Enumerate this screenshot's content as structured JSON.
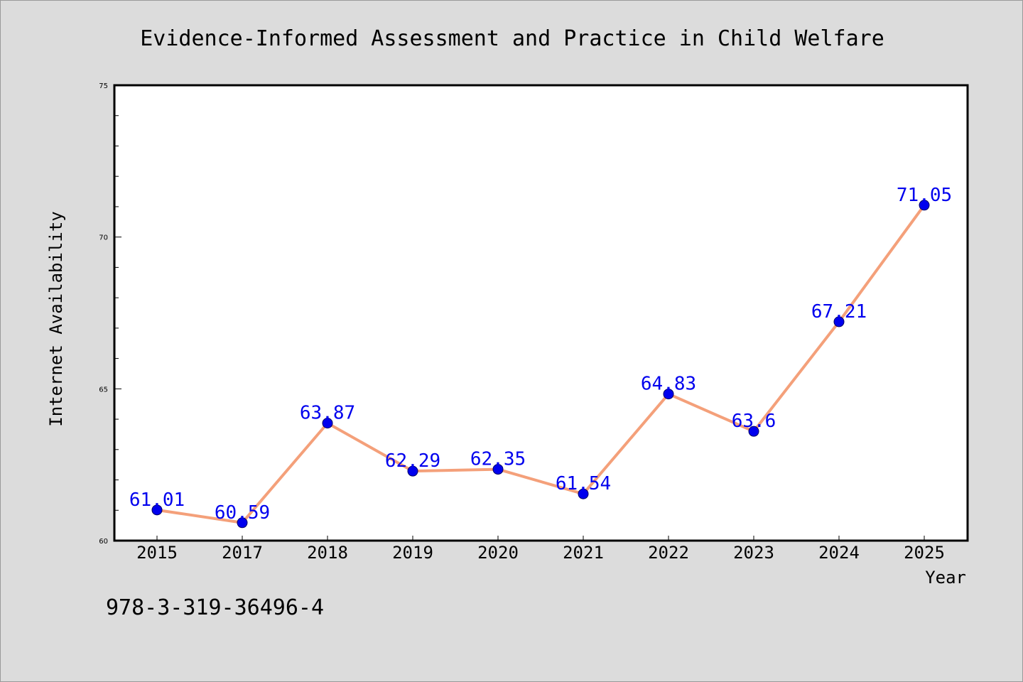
{
  "chart_data": {
    "type": "line",
    "title": "Evidence-Informed Assessment and Practice in Child Welfare",
    "xlabel": "Year",
    "ylabel": "Internet Availability",
    "categories": [
      "2015",
      "2017",
      "2018",
      "2019",
      "2020",
      "2021",
      "2022",
      "2023",
      "2024",
      "2025"
    ],
    "series": [
      {
        "values": [
          61.01,
          60.59,
          63.87,
          62.29,
          62.35,
          61.54,
          64.83,
          63.6,
          67.21,
          71.05
        ],
        "data_labels": [
          "61.01",
          "60.59",
          "63.87",
          "62.29",
          "62.35",
          "61.54",
          "64.83",
          "63.6",
          "67.21",
          "71.05"
        ]
      }
    ],
    "ylim": [
      60,
      75
    ],
    "yticks": [
      "60",
      "65",
      "70",
      "75"
    ],
    "grid": false,
    "line_color": "#f4a07a",
    "marker_color": "#0000ee",
    "label_color": "#0000ee",
    "background_color": "#dcdcdc",
    "plot_background_color": "#ffffff"
  },
  "footer": {
    "isbn": "978-3-319-36496-4"
  }
}
